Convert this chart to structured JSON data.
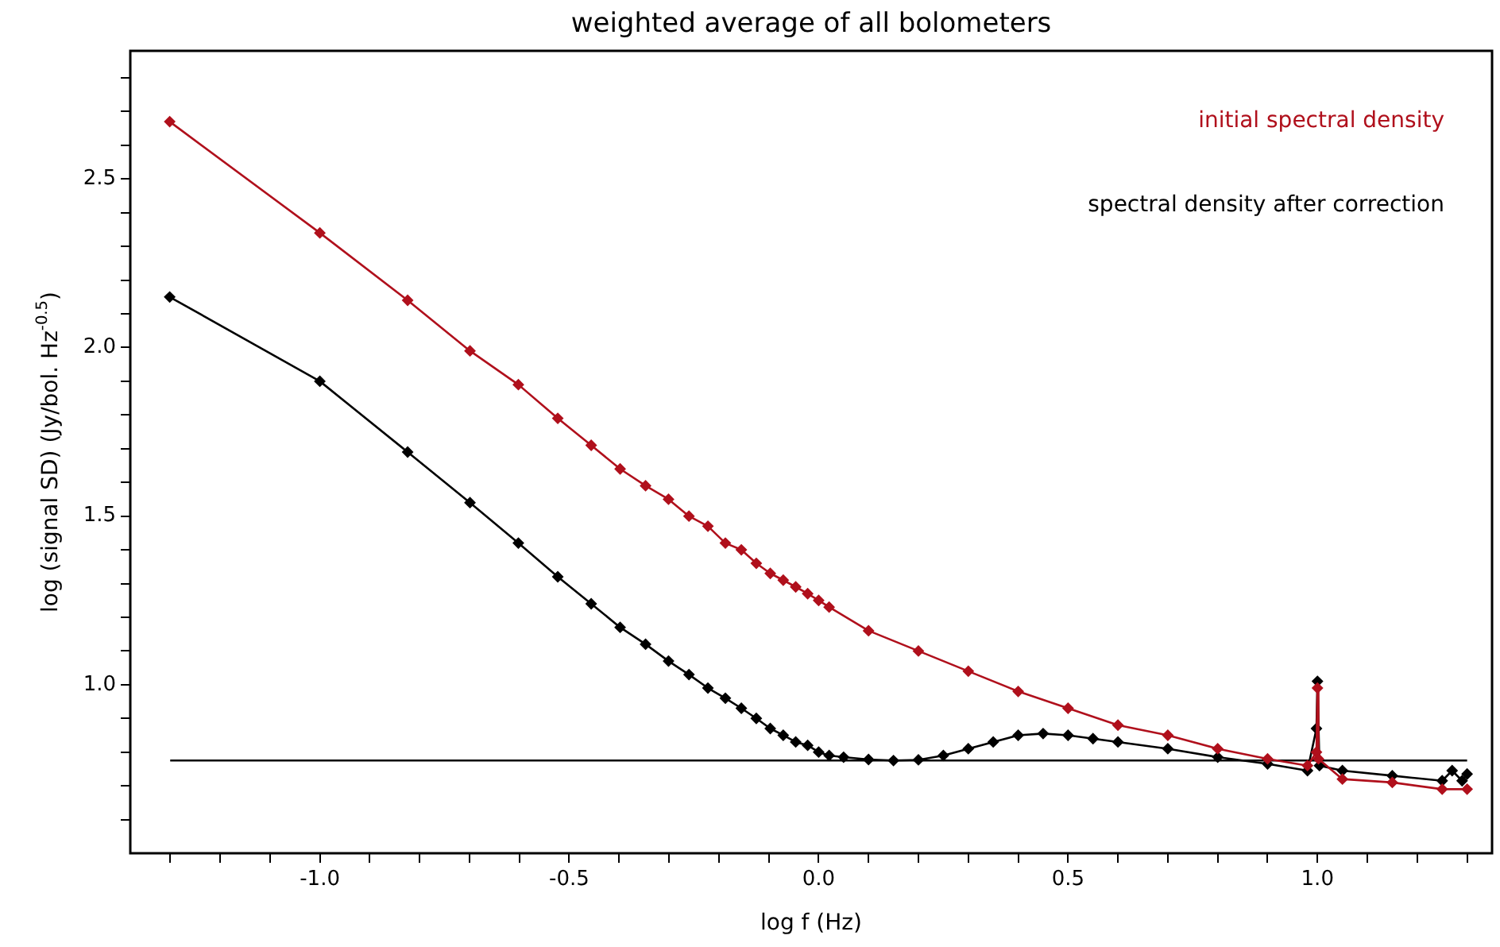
{
  "chart_data": {
    "type": "line",
    "title": "weighted average of all bolometers",
    "xlabel": "log f (Hz)",
    "ylabel": "log (signal SD) (Jy/bol. Hz$^{-0.5}$)",
    "xlim": [
      -1.38,
      1.35
    ],
    "ylim": [
      0.5,
      2.88
    ],
    "xticks": [
      {
        "value": -1.3,
        "label": null
      },
      {
        "value": -1.2,
        "label": null
      },
      {
        "value": -1.1,
        "label": null
      },
      {
        "value": -1,
        "label": "-1.0"
      },
      {
        "value": -0.9,
        "label": null
      },
      {
        "value": -0.8,
        "label": null
      },
      {
        "value": -0.7,
        "label": null
      },
      {
        "value": -0.6,
        "label": null
      },
      {
        "value": -0.5,
        "label": "-0.5"
      },
      {
        "value": -0.4,
        "label": null
      },
      {
        "value": -0.3,
        "label": null
      },
      {
        "value": -0.2,
        "label": null
      },
      {
        "value": -0.1,
        "label": null
      },
      {
        "value": 0,
        "label": "0.0"
      },
      {
        "value": 0.1,
        "label": null
      },
      {
        "value": 0.2,
        "label": null
      },
      {
        "value": 0.3,
        "label": null
      },
      {
        "value": 0.4,
        "label": null
      },
      {
        "value": 0.5,
        "label": "0.5"
      },
      {
        "value": 0.6,
        "label": null
      },
      {
        "value": 0.7,
        "label": null
      },
      {
        "value": 0.8,
        "label": null
      },
      {
        "value": 0.9,
        "label": null
      },
      {
        "value": 1,
        "label": "1.0"
      },
      {
        "value": 1.1,
        "label": null
      },
      {
        "value": 1.2,
        "label": null
      },
      {
        "value": 1.3,
        "label": null
      }
    ],
    "yticks": [
      {
        "value": 0.6,
        "label": null
      },
      {
        "value": 0.7,
        "label": null
      },
      {
        "value": 0.8,
        "label": null
      },
      {
        "value": 0.9,
        "label": null
      },
      {
        "value": 1,
        "label": "1.0"
      },
      {
        "value": 1.1,
        "label": null
      },
      {
        "value": 1.2,
        "label": null
      },
      {
        "value": 1.3,
        "label": null
      },
      {
        "value": 1.4,
        "label": null
      },
      {
        "value": 1.5,
        "label": "1.5"
      },
      {
        "value": 1.6,
        "label": null
      },
      {
        "value": 1.7,
        "label": null
      },
      {
        "value": 1.8,
        "label": null
      },
      {
        "value": 1.9,
        "label": null
      },
      {
        "value": 2,
        "label": "2.0"
      },
      {
        "value": 2.1,
        "label": null
      },
      {
        "value": 2.2,
        "label": null
      },
      {
        "value": 2.3,
        "label": null
      },
      {
        "value": 2.4,
        "label": null
      },
      {
        "value": 2.5,
        "label": "2.5"
      },
      {
        "value": 2.6,
        "label": null
      },
      {
        "value": 2.7,
        "label": null
      },
      {
        "value": 2.8,
        "label": null
      }
    ],
    "grid": false,
    "legend": "top right",
    "marker": "diamond",
    "line_style": "solid",
    "series": [
      {
        "name": "initial spectral density",
        "color": "#b0101c",
        "x": [
          -1.301,
          -1.0,
          -0.824,
          -0.699,
          -0.602,
          -0.523,
          -0.456,
          -0.398,
          -0.347,
          -0.301,
          -0.26,
          -0.222,
          -0.187,
          -0.155,
          -0.125,
          -0.097,
          -0.071,
          -0.046,
          -0.022,
          0.0,
          0.021,
          0.1,
          0.2,
          0.3,
          0.4,
          0.5,
          0.6,
          0.7,
          0.8,
          0.9,
          0.98,
          0.998,
          1.0,
          1.002,
          1.05,
          1.15,
          1.25,
          1.3
        ],
        "values": [
          2.67,
          2.34,
          2.14,
          1.99,
          1.89,
          1.79,
          1.71,
          1.64,
          1.59,
          1.55,
          1.5,
          1.47,
          1.42,
          1.4,
          1.36,
          1.33,
          1.31,
          1.29,
          1.27,
          1.25,
          1.23,
          1.16,
          1.1,
          1.04,
          0.98,
          0.93,
          0.88,
          0.85,
          0.81,
          0.78,
          0.76,
          0.8,
          0.99,
          0.78,
          0.72,
          0.71,
          0.69,
          0.69
        ]
      },
      {
        "name": "spectral density after correction",
        "color": "#000000",
        "x": [
          -1.301,
          -1.0,
          -0.824,
          -0.699,
          -0.602,
          -0.523,
          -0.456,
          -0.398,
          -0.347,
          -0.301,
          -0.26,
          -0.222,
          -0.187,
          -0.155,
          -0.125,
          -0.097,
          -0.071,
          -0.046,
          -0.022,
          0.0,
          0.021,
          0.05,
          0.1,
          0.15,
          0.2,
          0.25,
          0.3,
          0.35,
          0.4,
          0.45,
          0.5,
          0.55,
          0.6,
          0.7,
          0.8,
          0.9,
          0.98,
          0.998,
          1.0,
          1.004,
          1.05,
          1.15,
          1.25,
          1.27,
          1.29,
          1.3
        ],
        "values": [
          2.15,
          1.9,
          1.69,
          1.54,
          1.42,
          1.32,
          1.24,
          1.17,
          1.12,
          1.07,
          1.03,
          0.99,
          0.96,
          0.93,
          0.9,
          0.87,
          0.85,
          0.83,
          0.82,
          0.8,
          0.79,
          0.785,
          0.778,
          0.775,
          0.777,
          0.79,
          0.81,
          0.83,
          0.85,
          0.855,
          0.85,
          0.84,
          0.83,
          0.81,
          0.785,
          0.765,
          0.745,
          0.87,
          1.01,
          0.76,
          0.745,
          0.73,
          0.715,
          0.745,
          0.715,
          0.735
        ]
      },
      {
        "type": "line",
        "color": "#000000",
        "marker": "none",
        "x": [
          -1.3,
          1.3
        ],
        "values": [
          0.775,
          0.775
        ]
      }
    ]
  }
}
